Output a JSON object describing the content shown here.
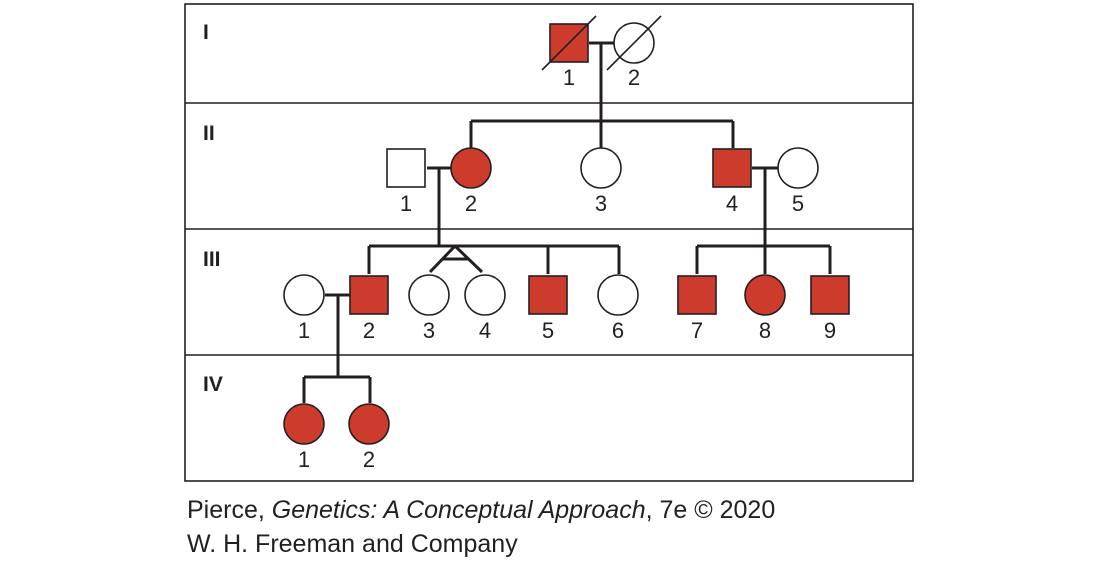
{
  "colors": {
    "affected": "#cc3b2c",
    "line": "#231f20",
    "background": "#ffffff"
  },
  "generations": [
    {
      "label": "I"
    },
    {
      "label": "II"
    },
    {
      "label": "III"
    },
    {
      "label": "IV"
    }
  ],
  "individuals": [
    {
      "id": "I-1",
      "number": "1",
      "sex": "male",
      "affected": true,
      "deceased": true
    },
    {
      "id": "I-2",
      "number": "2",
      "sex": "female",
      "affected": false,
      "deceased": true
    },
    {
      "id": "II-1",
      "number": "1",
      "sex": "male",
      "affected": false
    },
    {
      "id": "II-2",
      "number": "2",
      "sex": "female",
      "affected": true
    },
    {
      "id": "II-3",
      "number": "3",
      "sex": "female",
      "affected": false
    },
    {
      "id": "II-4",
      "number": "4",
      "sex": "male",
      "affected": true
    },
    {
      "id": "II-5",
      "number": "5",
      "sex": "female",
      "affected": false
    },
    {
      "id": "III-1",
      "number": "1",
      "sex": "female",
      "affected": false
    },
    {
      "id": "III-2",
      "number": "2",
      "sex": "male",
      "affected": true
    },
    {
      "id": "III-3",
      "number": "3",
      "sex": "female",
      "affected": false,
      "twin": "identical"
    },
    {
      "id": "III-4",
      "number": "4",
      "sex": "female",
      "affected": false,
      "twin": "identical"
    },
    {
      "id": "III-5",
      "number": "5",
      "sex": "male",
      "affected": true
    },
    {
      "id": "III-6",
      "number": "6",
      "sex": "female",
      "affected": false
    },
    {
      "id": "III-7",
      "number": "7",
      "sex": "male",
      "affected": true
    },
    {
      "id": "III-8",
      "number": "8",
      "sex": "female",
      "affected": true
    },
    {
      "id": "III-9",
      "number": "9",
      "sex": "male",
      "affected": true
    },
    {
      "id": "IV-1",
      "number": "1",
      "sex": "female",
      "affected": true
    },
    {
      "id": "IV-2",
      "number": "2",
      "sex": "female",
      "affected": true
    }
  ],
  "caption": {
    "line1_prefix": "Pierce, ",
    "line1_title": "Genetics: A Conceptual Approach",
    "line1_suffix": ", 7e © 2020",
    "line2": "W. H. Freeman and Company"
  }
}
